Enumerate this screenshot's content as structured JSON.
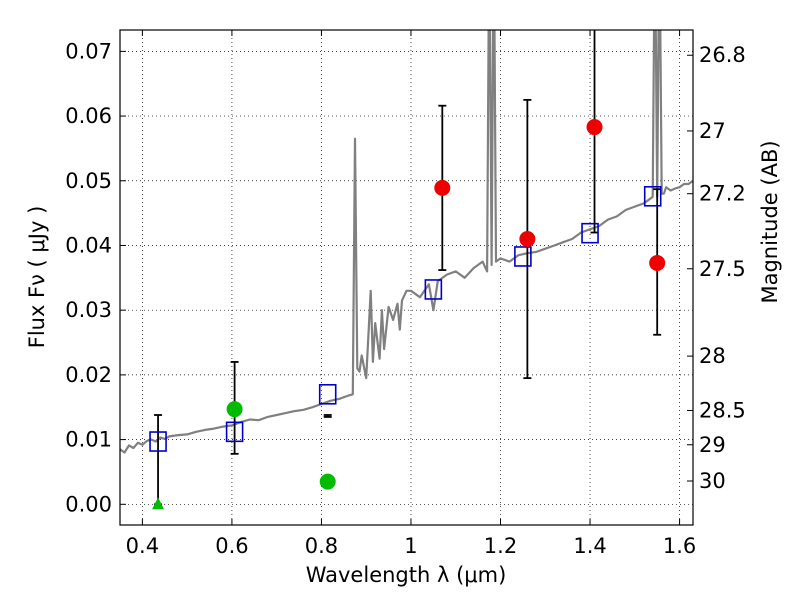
{
  "chart_data": {
    "type": "line",
    "xlabel": "Wavelength  λ (μm)",
    "ylabel": "Flux  Fν  ( μJy )",
    "y2label": "Magnitude (AB)",
    "xlim": [
      0.35,
      1.63
    ],
    "ylim": [
      -0.0032,
      0.0733
    ],
    "grid": true,
    "x_ticks": [
      0.4,
      0.6,
      0.8,
      1.0,
      1.2,
      1.4,
      1.6
    ],
    "x_tick_labels": [
      "0.4",
      "0.6",
      "0.8",
      "1",
      "1.2",
      "1.4",
      "1.6"
    ],
    "y_ticks": [
      0.0,
      0.01,
      0.02,
      0.03,
      0.04,
      0.05,
      0.06,
      0.07
    ],
    "y_tick_labels": [
      "0.00",
      "0.01",
      "0.02",
      "0.03",
      "0.04",
      "0.05",
      "0.06",
      "0.07"
    ],
    "mag_ticks": [
      {
        "label": "26.8",
        "flux": 0.0694
      },
      {
        "label": "27",
        "flux": 0.0577
      },
      {
        "label": "27.2",
        "flux": 0.048
      },
      {
        "label": "27.5",
        "flux": 0.0364
      },
      {
        "label": "28",
        "flux": 0.0229
      },
      {
        "label": "28.5",
        "flux": 0.0145
      },
      {
        "label": "29",
        "flux": 0.0092
      },
      {
        "label": "30",
        "flux": 0.0036
      }
    ],
    "colors": {
      "spectrum": "#808080",
      "model": "#0000cc",
      "optical": "#00bb00",
      "nir": "#ee0000",
      "errorbar": "#000000"
    },
    "series": [
      {
        "name": "Model spectrum",
        "kind": "line",
        "x": [
          0.35,
          0.36,
          0.37,
          0.38,
          0.39,
          0.4,
          0.41,
          0.42,
          0.43,
          0.44,
          0.45,
          0.46,
          0.48,
          0.5,
          0.52,
          0.54,
          0.56,
          0.58,
          0.6,
          0.62,
          0.64,
          0.66,
          0.68,
          0.7,
          0.72,
          0.74,
          0.76,
          0.78,
          0.8,
          0.82,
          0.84,
          0.86,
          0.87,
          0.875,
          0.88,
          0.885,
          0.89,
          0.9,
          0.91,
          0.915,
          0.92,
          0.93,
          0.935,
          0.94,
          0.95,
          0.96,
          0.97,
          0.975,
          0.98,
          0.99,
          1.0,
          1.02,
          1.04,
          1.05,
          1.06,
          1.08,
          1.1,
          1.12,
          1.14,
          1.16,
          1.17,
          1.175,
          1.18,
          1.185,
          1.19,
          1.2,
          1.22,
          1.24,
          1.26,
          1.28,
          1.3,
          1.32,
          1.34,
          1.36,
          1.38,
          1.4,
          1.42,
          1.44,
          1.46,
          1.48,
          1.5,
          1.52,
          1.53,
          1.54,
          1.545,
          1.55,
          1.555,
          1.56,
          1.565,
          1.57,
          1.58,
          1.59,
          1.6,
          1.61,
          1.62,
          1.63
        ],
        "values": [
          0.0085,
          0.008,
          0.0091,
          0.0087,
          0.0095,
          0.0092,
          0.0098,
          0.01,
          0.0097,
          0.0103,
          0.0101,
          0.0105,
          0.0107,
          0.0108,
          0.0112,
          0.0115,
          0.0117,
          0.012,
          0.0122,
          0.0127,
          0.0131,
          0.013,
          0.0135,
          0.0138,
          0.0141,
          0.0144,
          0.0146,
          0.015,
          0.0155,
          0.016,
          0.0163,
          0.0168,
          0.017,
          0.0565,
          0.021,
          0.0205,
          0.023,
          0.0195,
          0.033,
          0.022,
          0.028,
          0.0225,
          0.03,
          0.024,
          0.0305,
          0.0285,
          0.031,
          0.027,
          0.0315,
          0.033,
          0.033,
          0.032,
          0.034,
          0.03,
          0.0345,
          0.0355,
          0.036,
          0.035,
          0.0365,
          0.0375,
          0.036,
          0.09,
          0.037,
          0.09,
          0.0375,
          0.038,
          0.0375,
          0.0385,
          0.0388,
          0.039,
          0.0395,
          0.04,
          0.0405,
          0.041,
          0.042,
          0.0425,
          0.043,
          0.044,
          0.0445,
          0.0455,
          0.046,
          0.0465,
          0.047,
          0.0475,
          0.09,
          0.0475,
          0.09,
          0.048,
          0.048,
          0.049,
          0.0485,
          0.0488,
          0.049,
          0.0495,
          0.0495,
          0.05
        ]
      },
      {
        "name": "Model photometry",
        "kind": "square",
        "x": [
          0.435,
          0.606,
          0.814,
          1.05,
          1.25,
          1.4,
          1.54
        ],
        "values": [
          0.0097,
          0.0112,
          0.017,
          0.0332,
          0.0383,
          0.0419,
          0.0476
        ]
      },
      {
        "name": "Observed optical",
        "kind": "circle",
        "x": [
          0.606,
          0.814
        ],
        "values": [
          0.0147,
          0.0035
        ],
        "err_low": [
          0.0078,
          0.0135
        ],
        "err_high": [
          0.022,
          0.0138
        ]
      },
      {
        "name": "Observed optical limit",
        "kind": "triangle",
        "x": [
          0.435
        ],
        "values": [
          0.0
        ],
        "err_low": [
          0.0
        ],
        "err_high": [
          0.0138
        ]
      },
      {
        "name": "Observed NIR",
        "kind": "circle",
        "x": [
          1.07,
          1.26,
          1.41,
          1.55
        ],
        "values": [
          0.0489,
          0.041,
          0.0583,
          0.0373
        ],
        "err_low": [
          0.0362,
          0.0195,
          0.042,
          0.0262
        ],
        "err_high": [
          0.0616,
          0.0625,
          0.074,
          0.0487
        ]
      }
    ]
  }
}
